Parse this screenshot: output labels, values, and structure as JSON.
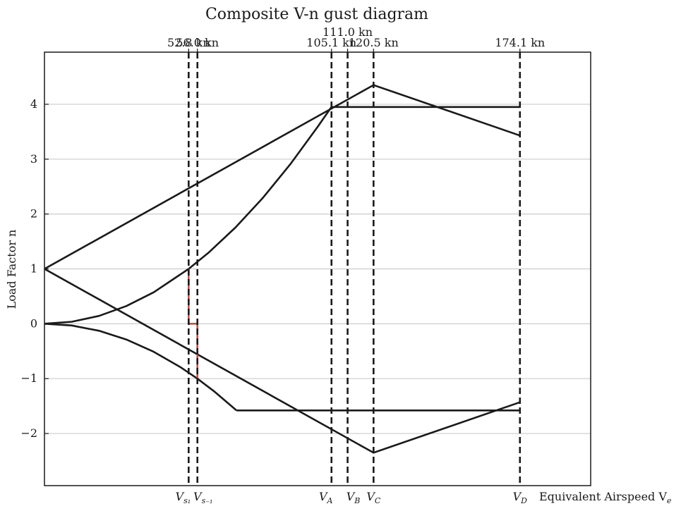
{
  "chart_data": {
    "type": "line",
    "title": "Composite V-n gust diagram",
    "xlabel": "Equivalent Airspeed V",
    "xlabel_sub": "e",
    "ylabel": "Load Factor n",
    "xlim": [
      0,
      200
    ],
    "ylim": [
      -2.95,
      4.95
    ],
    "grid": "horizontal",
    "legend": "none",
    "colors": {
      "lines": "#1a1a1a",
      "stall": "#c0504d",
      "grid": "#cccccc"
    },
    "y_ticks": [
      {
        "value": 4,
        "label": "4"
      },
      {
        "value": 3,
        "label": "3"
      },
      {
        "value": 2,
        "label": "2"
      },
      {
        "value": 1,
        "label": "1"
      },
      {
        "value": 0,
        "label": "0"
      },
      {
        "value": -1,
        "label": "−1"
      },
      {
        "value": -2,
        "label": "−2"
      }
    ],
    "speed_markers": [
      {
        "speed": 52.8,
        "top_label": "52.8 kn",
        "top_row": 0,
        "bottom_main": "V",
        "bottom_sub": "s₁"
      },
      {
        "speed": 56.0,
        "top_label": "56.0 kn",
        "top_row": 0,
        "bottom_main": "V",
        "bottom_sub": "s₋₁"
      },
      {
        "speed": 105.1,
        "top_label": "105.1 kn",
        "top_row": 0,
        "bottom_main": "V",
        "bottom_sub": "A"
      },
      {
        "speed": 111.0,
        "top_label": "111.0 kn",
        "top_row": 1,
        "bottom_main": "V",
        "bottom_sub": "B"
      },
      {
        "speed": 120.5,
        "top_label": "120.5 kn",
        "top_row": 0,
        "bottom_main": "V",
        "bottom_sub": "C"
      },
      {
        "speed": 174.1,
        "top_label": "174.1 kn",
        "top_row": 0,
        "bottom_main": "V",
        "bottom_sub": "D"
      }
    ],
    "series": [
      {
        "kind": "positive-stall-curve",
        "x": [
          0,
          10,
          20,
          30,
          40,
          52.8,
          60,
          70,
          80,
          90,
          100,
          105.1
        ],
        "y": [
          0,
          0.036,
          0.143,
          0.323,
          0.574,
          1.0,
          1.291,
          1.758,
          2.296,
          2.906,
          3.587,
          3.95
        ]
      },
      {
        "kind": "negative-stall-curve",
        "x": [
          0,
          10,
          20,
          30,
          40,
          50,
          56.0,
          62,
          70.3
        ],
        "y": [
          0,
          -0.032,
          -0.128,
          -0.287,
          -0.51,
          -0.797,
          -1.0,
          -1.226,
          -1.58
        ]
      },
      {
        "kind": "positive-limit",
        "x": [
          105.1,
          174.1
        ],
        "y": [
          3.95,
          3.95
        ]
      },
      {
        "kind": "negative-limit",
        "x": [
          70.3,
          174.1
        ],
        "y": [
          -1.58,
          -1.58
        ]
      },
      {
        "kind": "gust-positive",
        "x": [
          0,
          120.5,
          174.1
        ],
        "y": [
          1,
          4.35,
          3.43
        ]
      },
      {
        "kind": "gust-negative",
        "x": [
          0,
          120.5,
          174.1
        ],
        "y": [
          1,
          -2.35,
          -1.43
        ]
      },
      {
        "kind": "stall-boundary",
        "x": [
          52.8,
          52.8,
          56.0,
          56.0
        ],
        "y": [
          1.0,
          0,
          0,
          -1.0
        ]
      }
    ]
  }
}
